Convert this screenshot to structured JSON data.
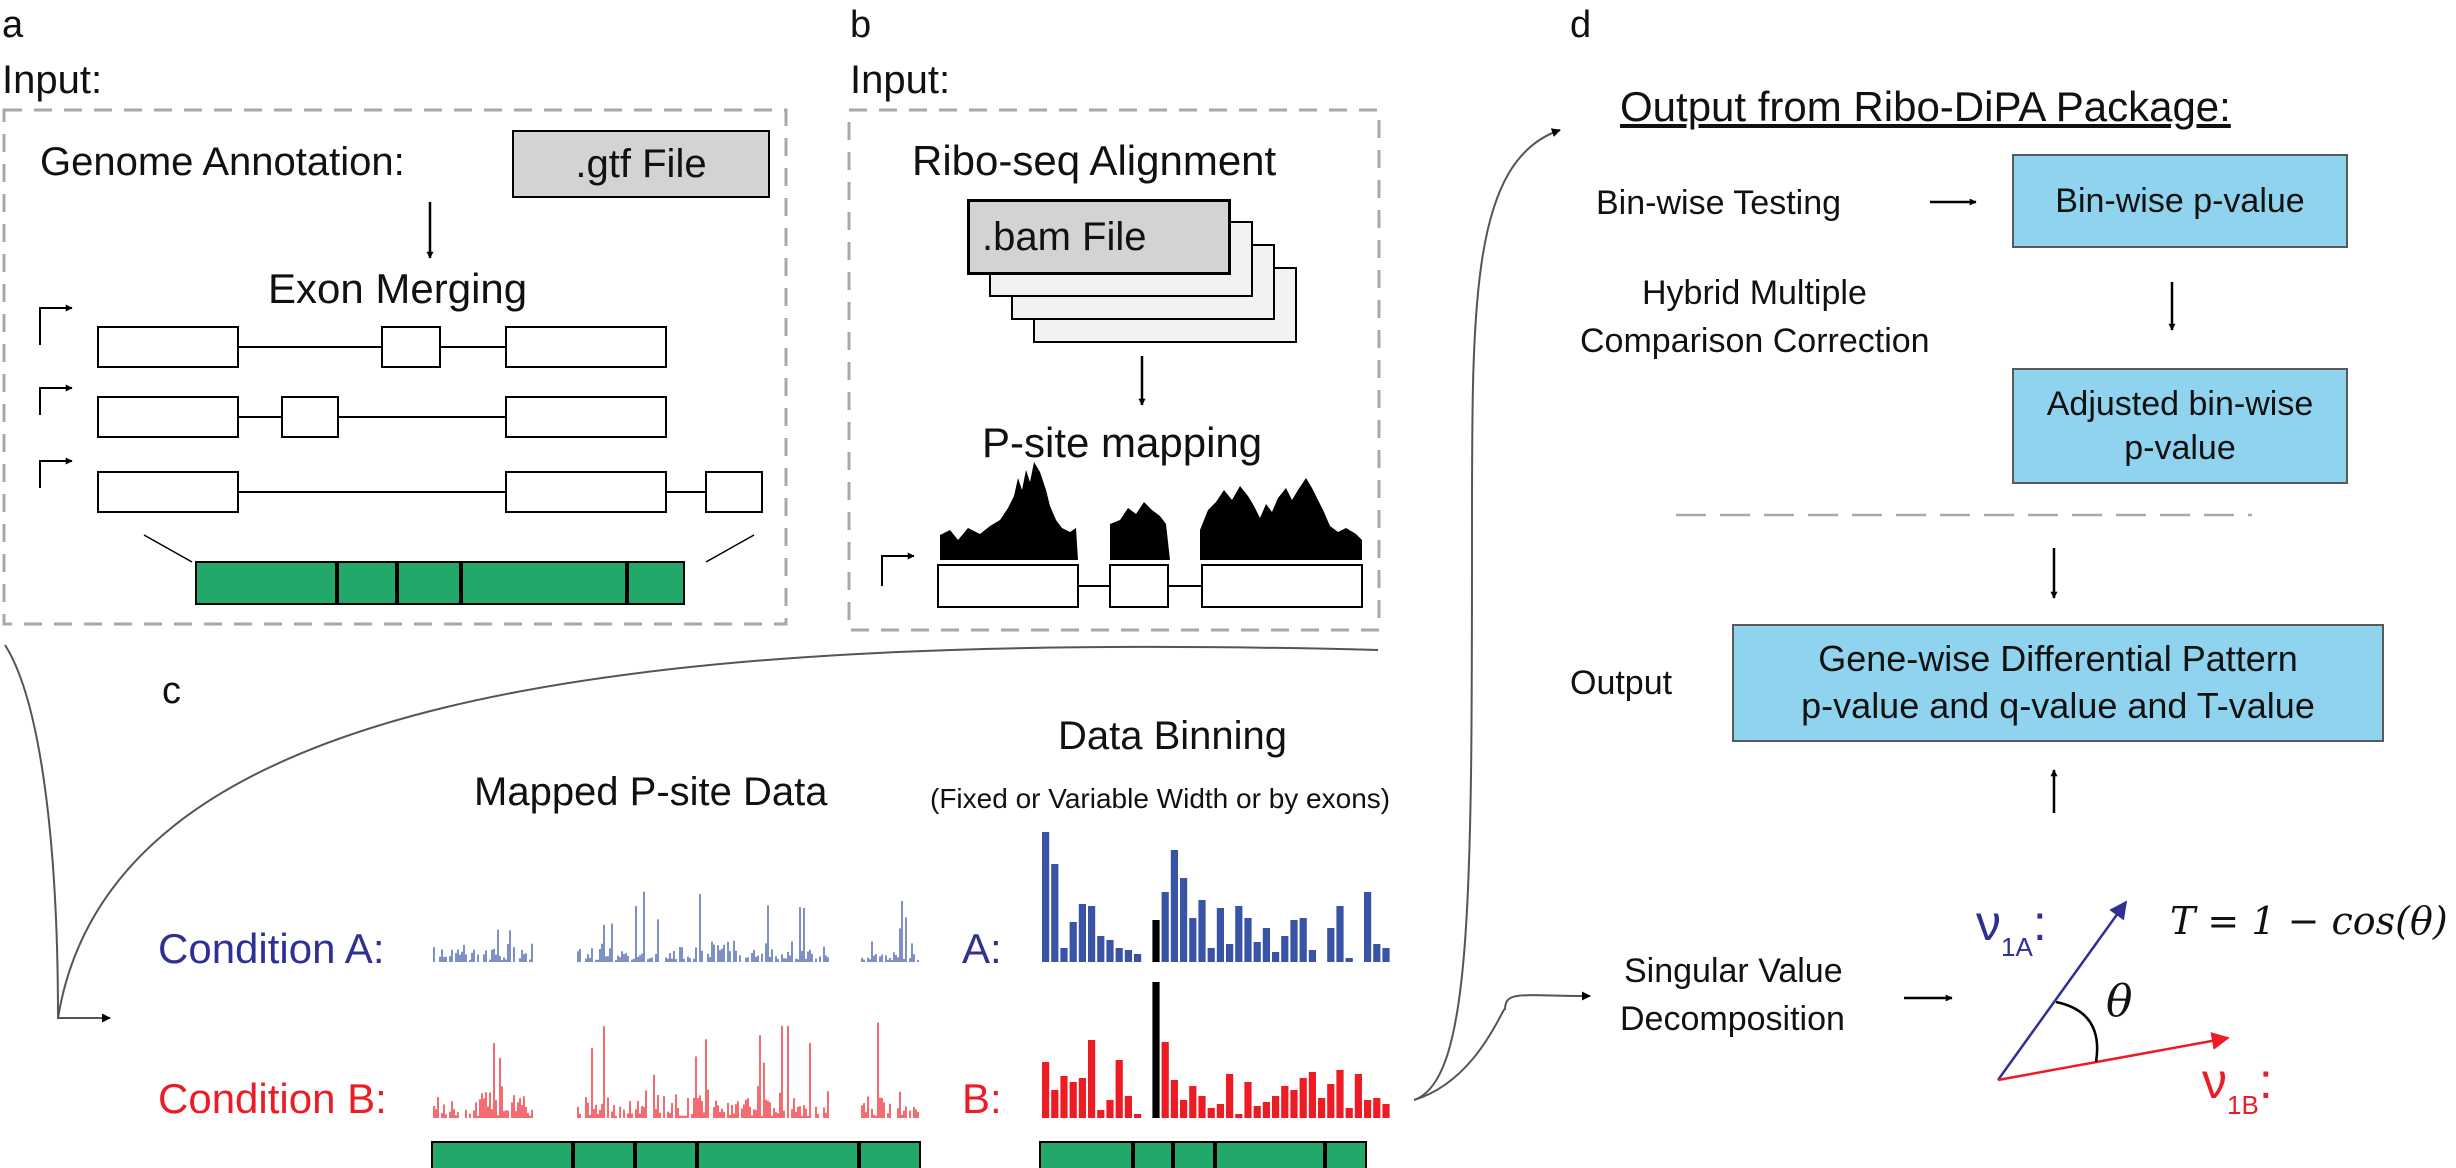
{
  "panel_a": {
    "letter": "a",
    "input_label": "Input:",
    "genome_annotation_label": "Genome Annotation:",
    "gtf_file_label": ".gtf File",
    "exon_merging_label": "Exon Merging"
  },
  "panel_b": {
    "letter": "b",
    "input_label": "Input:",
    "riboseq_label": "Ribo-seq Alignment",
    "bam_file_label": ".bam File",
    "psite_mapping_label": "P-site mapping"
  },
  "panel_c": {
    "letter": "c",
    "mapped_label": "Mapped P-site Data",
    "binning_title": "Data Binning",
    "binning_subtitle": "(Fixed or Variable Width or by exons)",
    "condition_a_label": "Condition A:",
    "condition_b_label": "Condition B:",
    "bin_a_label": "A:",
    "bin_b_label": "B:"
  },
  "panel_d": {
    "letter": "d",
    "output_title": "Output from Ribo-DiPA Package:",
    "binwise_testing_label": "Bin-wise Testing",
    "binwise_pvalue_label": "Bin-wise p-value",
    "hybrid_line1": "Hybrid Multiple",
    "hybrid_line2": "Comparison Correction",
    "adjusted_line1": "Adjusted bin-wise",
    "adjusted_line2": "p-value",
    "output_label": "Output",
    "genewise_line1": "Gene-wise Differential Pattern",
    "genewise_line2": "p-value and q-value and T-value",
    "svd_line1": "Singular Value",
    "svd_line2": "Decomposition",
    "v1a_base": "ν",
    "v1a_sub": "1A",
    "v1b_base": "ν",
    "v1b_sub": "1B",
    "vector_colon": ":",
    "formula": "T = 1 − cos(θ)",
    "theta": "θ"
  },
  "colors": {
    "box_grey": "#d1d3d4",
    "box_blue": "#8fd3ef",
    "green_bar": "#22a868",
    "condition_a": "#2e3192",
    "condition_a_bars": "#3954a4",
    "condition_b": "#ed1c24",
    "dash_grey": "#a7a9ac"
  },
  "icons": [
    "transcription-start-arrow-icon",
    "flow-arrow-icon"
  ]
}
